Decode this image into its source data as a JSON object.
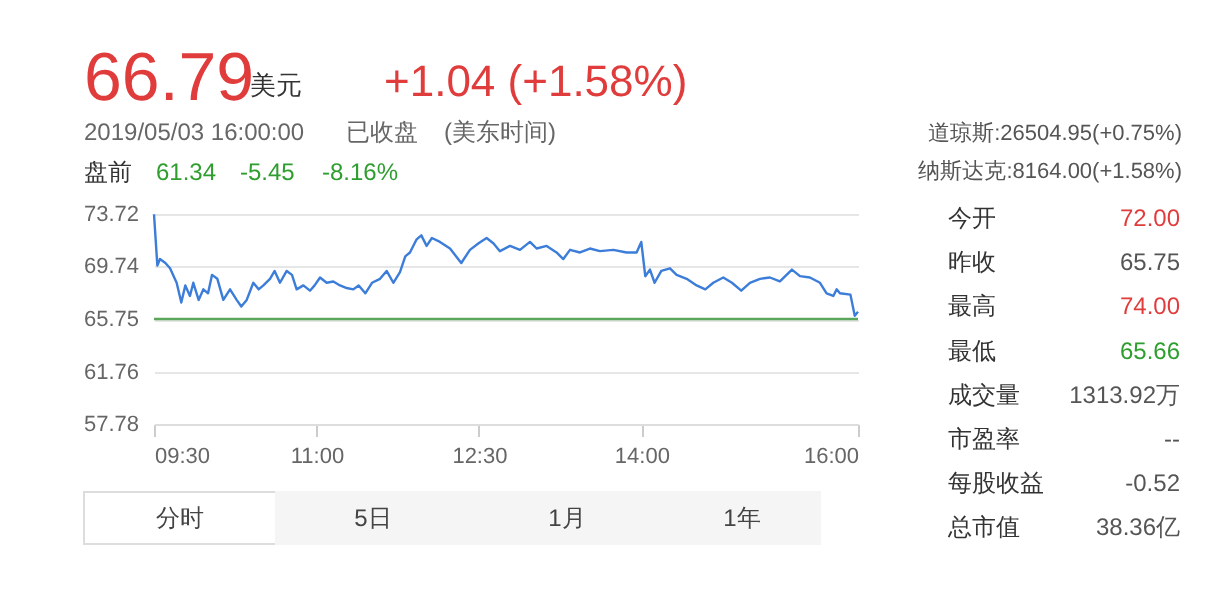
{
  "chart_data": [
    {
      "type": "other",
      "annotations": [
        "66.79",
        "美元",
        "+1.04 (+1.58%)",
        "2019/05/03 16:00:00",
        "已收盘",
        "(美东时间)",
        "盘前",
        "61.34",
        "-5.45",
        "-8.16%",
        "道琼斯:26504.95(+0.75%)",
        "纳斯达克:8164.00(+1.58%)"
      ],
      "colors": [
        "#e03c3c",
        "#333333",
        "#e03c3c",
        "#666666",
        "#666666",
        "#666666",
        "#333333",
        "#2e9e2e",
        "#2e9e2e",
        "#2e9e2e",
        "#555555",
        "#555555"
      ]
    },
    {
      "type": "line",
      "x": [
        9.5,
        9.531,
        9.555,
        9.605,
        9.648,
        9.709,
        9.752,
        9.789,
        9.832,
        9.863,
        9.912,
        9.956,
        9.999,
        10.036,
        10.085,
        10.14,
        10.202,
        10.263,
        10.306,
        10.356,
        10.417,
        10.466,
        10.51,
        10.571,
        10.614,
        10.663,
        10.725,
        10.774,
        10.817,
        10.879,
        10.94,
        10.983,
        11.033,
        11.094,
        11.156,
        11.217,
        11.279,
        11.34,
        11.39,
        11.451,
        11.513,
        11.587,
        11.648,
        11.71,
        11.771,
        11.82,
        11.863,
        11.925,
        11.968,
        12.017,
        12.066,
        12.14,
        12.233,
        12.337,
        12.417,
        12.497,
        12.571,
        12.633,
        12.694,
        12.787,
        12.879,
        12.971,
        13.033,
        13.125,
        13.217,
        13.279,
        13.341,
        13.433,
        13.525,
        13.617,
        13.741,
        13.864,
        13.956,
        13.999,
        14.036,
        14.079,
        14.122,
        14.184,
        14.264,
        14.325,
        14.418,
        14.51,
        14.59,
        14.664,
        14.756,
        14.836,
        14.922,
        15.002,
        15.095,
        15.187,
        15.279,
        15.39,
        15.464,
        15.556,
        15.649,
        15.71,
        15.772,
        15.803,
        15.833,
        15.93,
        15.97,
        16.0
      ],
      "series": [
        {
          "color": "#3b7dd8",
          "values": [
            73.7,
            69.8,
            70.3,
            70.0,
            69.6,
            68.5,
            67.0,
            68.3,
            67.5,
            68.5,
            67.2,
            68.0,
            67.7,
            69.1,
            68.8,
            67.2,
            68.0,
            67.2,
            66.7,
            67.2,
            68.5,
            68.0,
            68.3,
            68.8,
            69.4,
            68.5,
            69.4,
            69.1,
            68.0,
            68.3,
            67.9,
            68.3,
            68.9,
            68.5,
            68.6,
            68.3,
            68.1,
            68.0,
            68.3,
            67.7,
            68.5,
            68.8,
            69.4,
            68.5,
            69.3,
            70.5,
            70.8,
            71.8,
            72.1,
            71.3,
            71.9,
            71.6,
            71.1,
            70.0,
            71.0,
            71.5,
            71.9,
            71.5,
            70.9,
            71.3,
            71.0,
            71.6,
            71.1,
            71.3,
            70.8,
            70.3,
            71.0,
            70.8,
            71.1,
            70.9,
            71.0,
            70.8,
            70.8,
            71.6,
            69.0,
            69.5,
            68.5,
            69.4,
            69.6,
            69.1,
            68.8,
            68.3,
            68.0,
            68.5,
            68.9,
            68.5,
            67.9,
            68.5,
            68.8,
            68.9,
            68.6,
            69.5,
            69.0,
            68.9,
            68.5,
            67.7,
            67.5,
            68.0,
            67.7,
            67.6,
            66.0,
            66.3
          ]
        }
      ],
      "xlim": [
        9.5,
        16.0
      ],
      "xticks": [
        {
          "value": 9.5,
          "label": "09:30"
        },
        {
          "value": 11,
          "label": "11:00"
        },
        {
          "value": 12.5,
          "label": "12:30"
        },
        {
          "value": 14,
          "label": "14:00"
        },
        {
          "value": 16,
          "label": "16:00"
        }
      ],
      "ylim": [
        57.78,
        73.72
      ],
      "yticks": [
        57.78,
        61.76,
        65.75,
        69.74,
        73.72
      ],
      "ref_lines": [
        {
          "axis": "y",
          "value": 65.75,
          "color": "#5aa65a"
        }
      ],
      "grid": "y",
      "marker": "none",
      "line_style": "solid"
    },
    {
      "type": "other",
      "annotations": [
        "今开",
        "72.00",
        "昨收",
        "65.75",
        "最高",
        "74.00",
        "最低",
        "65.66",
        "成交量",
        "1313.92万",
        "市盈率",
        "--",
        "每股收益",
        "-0.52",
        "总市值",
        "38.36亿"
      ],
      "colors": [
        "#333333",
        "#e03c3c",
        "#333333",
        "#555555",
        "#333333",
        "#e03c3c",
        "#333333",
        "#2e9e2e",
        "#333333",
        "#555555",
        "#333333",
        "#555555",
        "#333333",
        "#555555",
        "#333333",
        "#555555"
      ]
    },
    {
      "type": "other",
      "annotations": [
        "分时",
        "5日",
        "1月",
        "1年"
      ]
    }
  ]
}
